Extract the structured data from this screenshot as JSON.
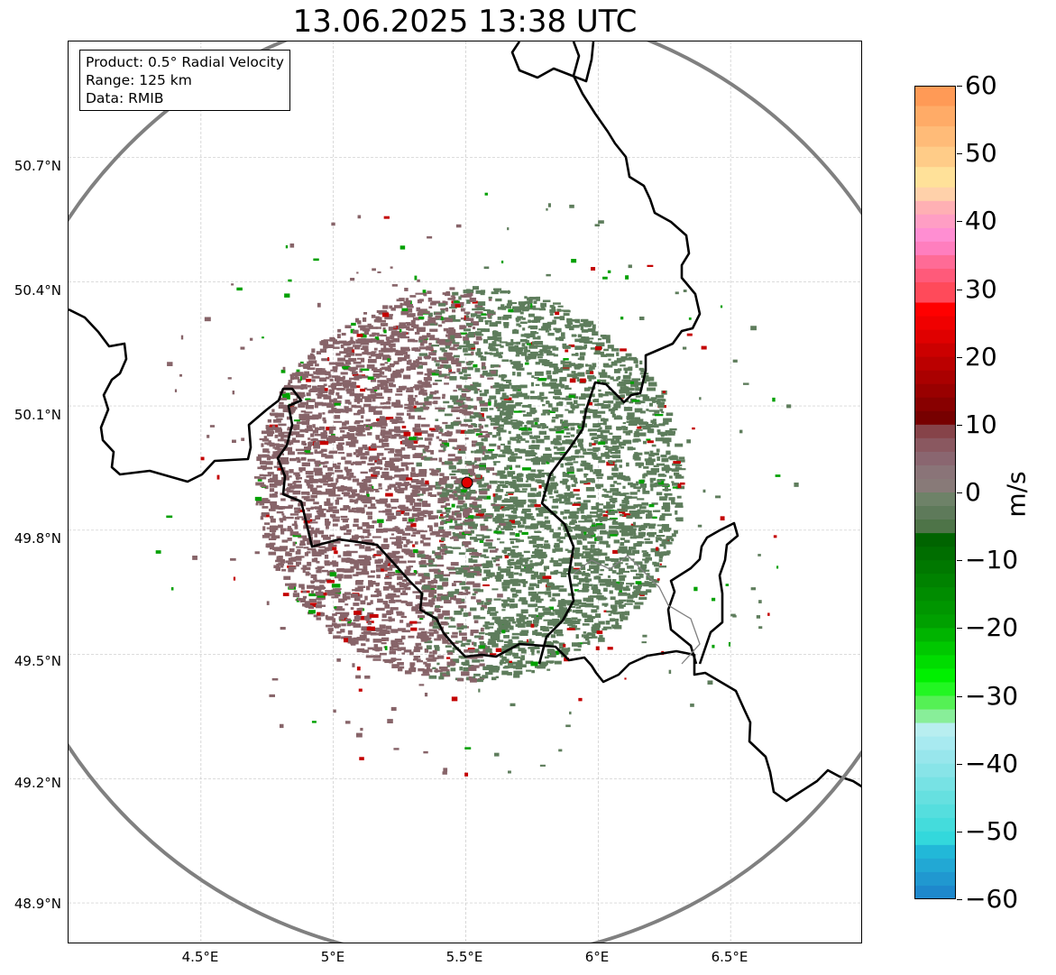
{
  "title": "13.06.2025 13:38 UTC",
  "info": {
    "product": "Product: 0.5° Radial Velocity",
    "range": "Range: 125 km",
    "source": "Data: RMIB"
  },
  "axes": {
    "lat_labels": [
      "50.7°N",
      "50.4°N",
      "50.1°N",
      "49.8°N",
      "49.5°N",
      "49.2°N",
      "48.9°N"
    ],
    "lon_labels": [
      "4.5°E",
      "5°E",
      "5.5°E",
      "6°E",
      "6.5°E"
    ]
  },
  "map": {
    "extent": {
      "lon_min": 4.0,
      "lon_max": 7.0,
      "lat_min": 48.8,
      "lat_max": 50.98
    },
    "grid_lats": [
      50.7,
      50.4,
      50.1,
      49.8,
      49.5,
      49.2,
      48.9
    ],
    "grid_lons": [
      4.5,
      5.0,
      5.5,
      6.0,
      6.5
    ],
    "radar_site": {
      "lon": 5.505,
      "lat": 49.915
    },
    "range_km": 125,
    "range_ring_color": "#808080",
    "radar_marker_color": "#e00000",
    "border_color": "#000000",
    "echo_colors": {
      "receding": "#876469",
      "approaching": "#5e7d5c",
      "strong_receding": "#c40000",
      "strong_approaching": "#00a000"
    }
  },
  "colorbar": {
    "unit": "m/s",
    "min": -60,
    "max": 60,
    "ticks": [
      60,
      50,
      40,
      30,
      20,
      10,
      0,
      -10,
      -20,
      -30,
      -40,
      -50,
      -60
    ],
    "tick_labels": [
      "60",
      "50",
      "40",
      "30",
      "20",
      "10",
      "0",
      "−10",
      "−20",
      "−30",
      "−40",
      "−50",
      "−60"
    ],
    "bands": [
      {
        "from": 57,
        "to": 60,
        "color": "#ff9a56"
      },
      {
        "from": 54,
        "to": 57,
        "color": "#ffab67"
      },
      {
        "from": 51,
        "to": 54,
        "color": "#ffbb78"
      },
      {
        "from": 48,
        "to": 51,
        "color": "#ffcc88"
      },
      {
        "from": 45,
        "to": 48,
        "color": "#ffe199"
      },
      {
        "from": 43,
        "to": 45,
        "color": "#ffd1aa"
      },
      {
        "from": 41,
        "to": 43,
        "color": "#ffb0b4"
      },
      {
        "from": 39,
        "to": 41,
        "color": "#ff9ec4"
      },
      {
        "from": 37,
        "to": 39,
        "color": "#ff8ed2"
      },
      {
        "from": 35,
        "to": 37,
        "color": "#ff7ebe"
      },
      {
        "from": 33,
        "to": 35,
        "color": "#ff6b96"
      },
      {
        "from": 31,
        "to": 33,
        "color": "#ff5a7a"
      },
      {
        "from": 28,
        "to": 31,
        "color": "#ff4a5a"
      },
      {
        "from": 26,
        "to": 28,
        "color": "#ff0000"
      },
      {
        "from": 24,
        "to": 26,
        "color": "#f00000"
      },
      {
        "from": 22,
        "to": 24,
        "color": "#e00000"
      },
      {
        "from": 20,
        "to": 22,
        "color": "#cc0000"
      },
      {
        "from": 18,
        "to": 20,
        "color": "#bb0000"
      },
      {
        "from": 16,
        "to": 18,
        "color": "#aa0000"
      },
      {
        "from": 14,
        "to": 16,
        "color": "#990000"
      },
      {
        "from": 12,
        "to": 14,
        "color": "#880000"
      },
      {
        "from": 10,
        "to": 12,
        "color": "#770000"
      },
      {
        "from": 8,
        "to": 10,
        "color": "#864349"
      },
      {
        "from": 6,
        "to": 8,
        "color": "#8a5860"
      },
      {
        "from": 4,
        "to": 6,
        "color": "#8a6670"
      },
      {
        "from": 2,
        "to": 4,
        "color": "#8a7478"
      },
      {
        "from": 0,
        "to": 2,
        "color": "#887a78"
      },
      {
        "from": -2,
        "to": 0,
        "color": "#6e8268"
      },
      {
        "from": -4,
        "to": -2,
        "color": "#5e7a5a"
      },
      {
        "from": -6,
        "to": -4,
        "color": "#4e7448"
      },
      {
        "from": -8,
        "to": -6,
        "color": "#006400"
      },
      {
        "from": -10,
        "to": -8,
        "color": "#006e00"
      },
      {
        "from": -12,
        "to": -10,
        "color": "#007800"
      },
      {
        "from": -14,
        "to": -12,
        "color": "#008200"
      },
      {
        "from": -16,
        "to": -14,
        "color": "#008c00"
      },
      {
        "from": -18,
        "to": -16,
        "color": "#009600"
      },
      {
        "from": -20,
        "to": -18,
        "color": "#00a000"
      },
      {
        "from": -22,
        "to": -20,
        "color": "#00b400"
      },
      {
        "from": -24,
        "to": -22,
        "color": "#00c800"
      },
      {
        "from": -26,
        "to": -24,
        "color": "#00dc00"
      },
      {
        "from": -28,
        "to": -26,
        "color": "#00f000"
      },
      {
        "from": -30,
        "to": -28,
        "color": "#22f622"
      },
      {
        "from": -32,
        "to": -30,
        "color": "#55f055"
      },
      {
        "from": -34,
        "to": -32,
        "color": "#88ee99"
      },
      {
        "from": -36,
        "to": -34,
        "color": "#b8eef0"
      },
      {
        "from": -38,
        "to": -36,
        "color": "#a8eaf0"
      },
      {
        "from": -40,
        "to": -38,
        "color": "#98e6ec"
      },
      {
        "from": -42,
        "to": -40,
        "color": "#88e4e8"
      },
      {
        "from": -44,
        "to": -42,
        "color": "#77e2e4"
      },
      {
        "from": -46,
        "to": -44,
        "color": "#66e0e0"
      },
      {
        "from": -48,
        "to": -46,
        "color": "#55dede"
      },
      {
        "from": -50,
        "to": -48,
        "color": "#44dcdc"
      },
      {
        "from": -52,
        "to": -50,
        "color": "#33d8dc"
      },
      {
        "from": -54,
        "to": -52,
        "color": "#22b8d8"
      },
      {
        "from": -56,
        "to": -54,
        "color": "#22a8d4"
      },
      {
        "from": -58,
        "to": -56,
        "color": "#2098d0"
      },
      {
        "from": -60,
        "to": -58,
        "color": "#1e88cc"
      }
    ]
  }
}
